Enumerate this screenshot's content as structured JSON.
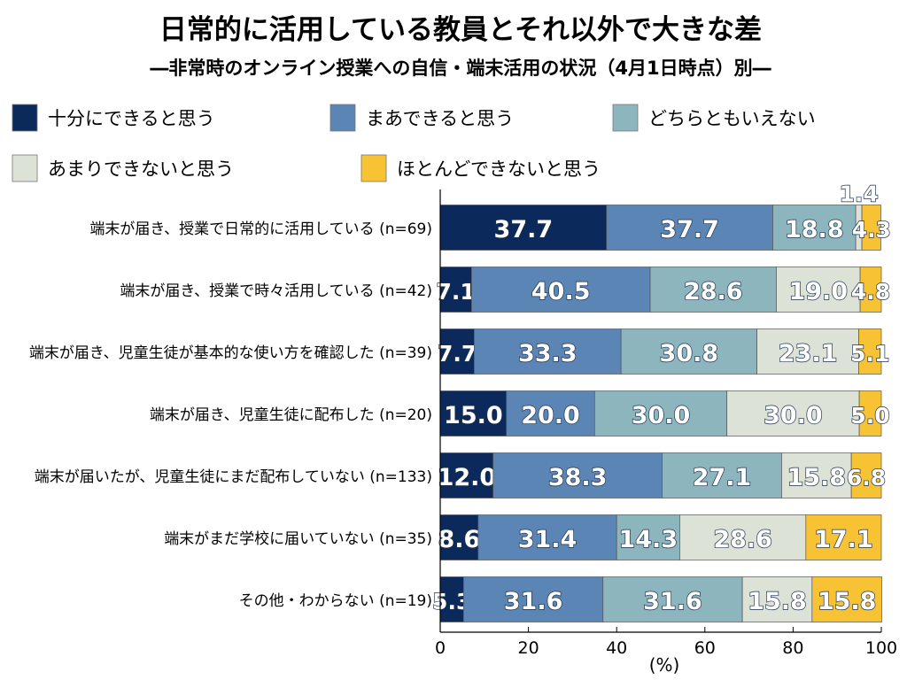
{
  "chart_data": {
    "type": "bar",
    "orientation": "horizontal",
    "stacked": true,
    "title": "日常的に活用している教員とそれ以外で大きな差",
    "subtitle": "―非常時のオンライン授業への自信・端末活用の状況（4月1日時点）別―",
    "xlabel": "(%)",
    "xlim": [
      0,
      100
    ],
    "xticks": [
      "0",
      "20",
      "40",
      "60",
      "80",
      "100"
    ],
    "grid": false,
    "legend_position": "top",
    "categories": [
      "端末が届き、授業で日常的に活用している (n=69)",
      "端末が届き、授業で時々活用している (n=42)",
      "端末が届き、児童生徒が基本的な使い方を確認した (n=39)",
      "端末が届き、児童生徒に配布した (n=20)",
      "端末が届いたが、児童生徒にまだ配布していない (n=133)",
      "端末がまだ学校に届いていない (n=35)",
      "その他・わからない (n=19)"
    ],
    "series": [
      {
        "name": "十分にできると思う",
        "color": "#0b2a5b",
        "label_color": "#ffffff",
        "values": [
          37.7,
          7.1,
          7.7,
          15.0,
          12.0,
          8.6,
          5.3
        ],
        "labels": [
          "37.7",
          "7.1",
          "7.7",
          "15.0",
          "12.0",
          "8.6",
          "5.3"
        ]
      },
      {
        "name": "まあできると思う",
        "color": "#5b85b5",
        "label_color": "#ffffff",
        "values": [
          37.7,
          40.5,
          33.3,
          20.0,
          38.3,
          31.4,
          31.6
        ],
        "labels": [
          "37.7",
          "40.5",
          "33.3",
          "20.0",
          "38.3",
          "31.4",
          "31.6"
        ]
      },
      {
        "name": "どちらともいえない",
        "color": "#8cb5be",
        "label_color": "#ffffff",
        "values": [
          18.8,
          28.6,
          30.8,
          30.0,
          27.1,
          14.3,
          31.6
        ],
        "labels": [
          "18.8",
          "28.6",
          "30.8",
          "30.0",
          "27.1",
          "14.3",
          "31.6"
        ]
      },
      {
        "name": "あまりできないと思う",
        "color": "#dde2d6",
        "label_color": "#ffffff",
        "values": [
          1.4,
          19.0,
          23.1,
          30.0,
          15.8,
          28.6,
          15.8
        ],
        "labels": [
          "1.4",
          "19.0",
          "23.1",
          "30.0",
          "15.8",
          "28.6",
          "15.8"
        ]
      },
      {
        "name": "ほとんどできないと思う",
        "color": "#f7c233",
        "label_color": "#ffffff",
        "values": [
          4.3,
          4.8,
          5.1,
          5.0,
          6.8,
          17.1,
          15.8
        ],
        "labels": [
          "4.3",
          "4.8",
          "5.1",
          "5.0",
          "6.8",
          "17.1",
          "15.8"
        ]
      }
    ]
  }
}
